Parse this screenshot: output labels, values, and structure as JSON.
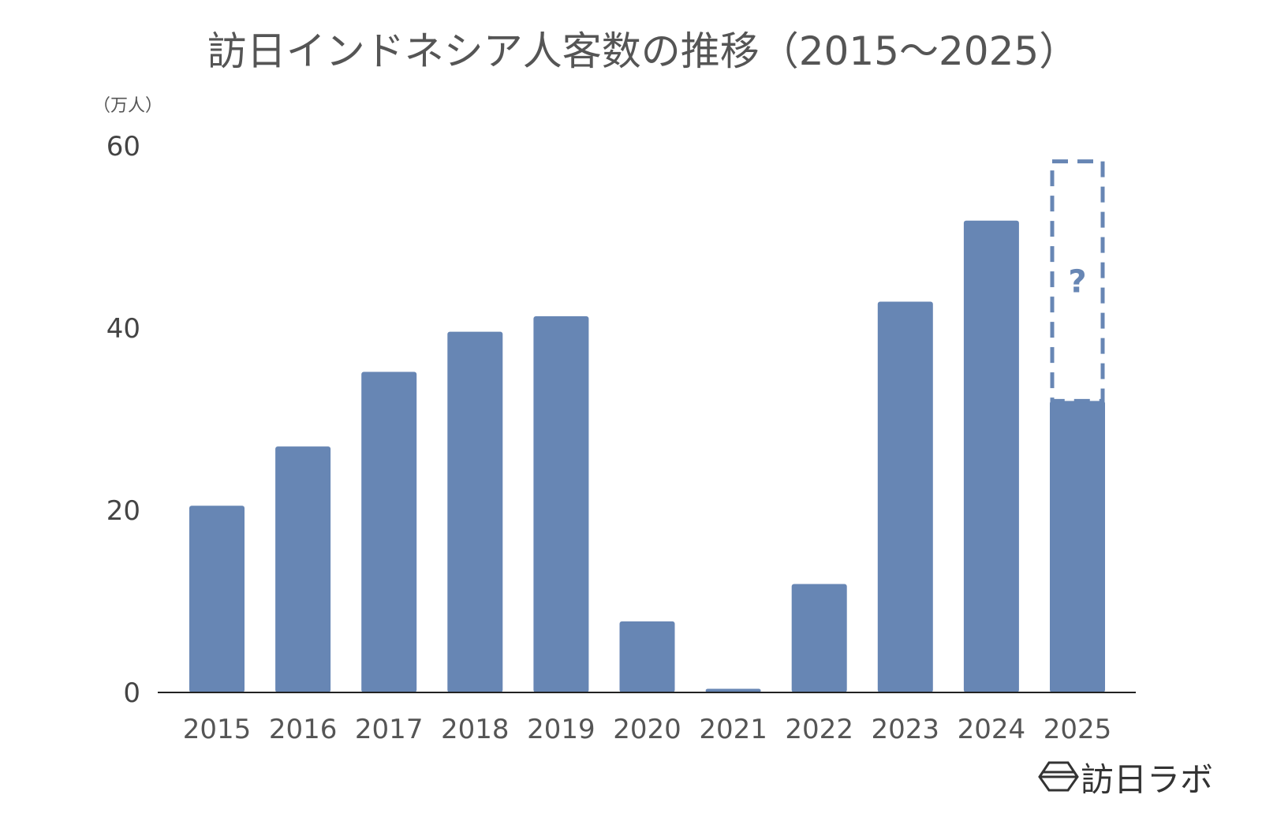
{
  "chart_data": {
    "type": "bar",
    "title": "訪日インドネシア人客数の推移（2015〜2025）",
    "ylabel": "（万人）",
    "xlabel": "",
    "categories": [
      "2015",
      "2016",
      "2017",
      "2018",
      "2019",
      "2020",
      "2021",
      "2022",
      "2023",
      "2024",
      "2025"
    ],
    "values": [
      20.5,
      27.0,
      35.2,
      39.6,
      41.3,
      7.8,
      0.4,
      11.9,
      42.9,
      51.8,
      32.0
    ],
    "projection": {
      "category": "2025",
      "value": 58.3,
      "label": "?",
      "style": "dashed"
    },
    "ylim": [
      0,
      60
    ],
    "yticks": [
      0,
      20,
      40,
      60
    ],
    "grid": false,
    "legend": "none",
    "bar_color": "#6786b4"
  },
  "logo": {
    "text": "訪日ラボ"
  }
}
